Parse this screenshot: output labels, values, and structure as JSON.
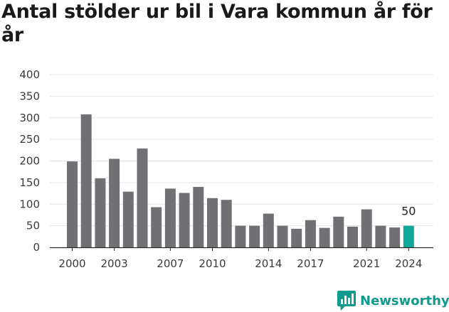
{
  "title": "Antal stölder ur bil i Vara kommun år för år",
  "brand": {
    "name": "Newsworthy",
    "icon": "bar-chart-speech-bubble-icon",
    "color": "#0f9a8e"
  },
  "chart_data": {
    "type": "bar",
    "title": "Antal stölder ur bil i Vara kommun år för år",
    "xlabel": "",
    "ylabel": "",
    "categories": [
      2000,
      2001,
      2002,
      2003,
      2004,
      2005,
      2006,
      2007,
      2008,
      2009,
      2010,
      2011,
      2012,
      2013,
      2014,
      2015,
      2016,
      2017,
      2018,
      2019,
      2020,
      2021,
      2022,
      2023,
      2024
    ],
    "values": [
      199,
      308,
      160,
      205,
      129,
      229,
      93,
      136,
      126,
      140,
      114,
      110,
      50,
      50,
      78,
      50,
      43,
      63,
      45,
      71,
      48,
      88,
      50,
      46,
      50
    ],
    "x_tick_labels": [
      "2000",
      "2003",
      "2007",
      "2010",
      "2014",
      "2017",
      "2021",
      "2024"
    ],
    "y_ticks": [
      0,
      50,
      100,
      150,
      200,
      250,
      300,
      350,
      400
    ],
    "ylim": [
      0,
      400
    ],
    "grid": true,
    "bar_color": "#717074",
    "highlight_color": "#12a899",
    "highlight_index": 24,
    "value_labels": [
      {
        "index": 24,
        "text": "50"
      }
    ]
  }
}
